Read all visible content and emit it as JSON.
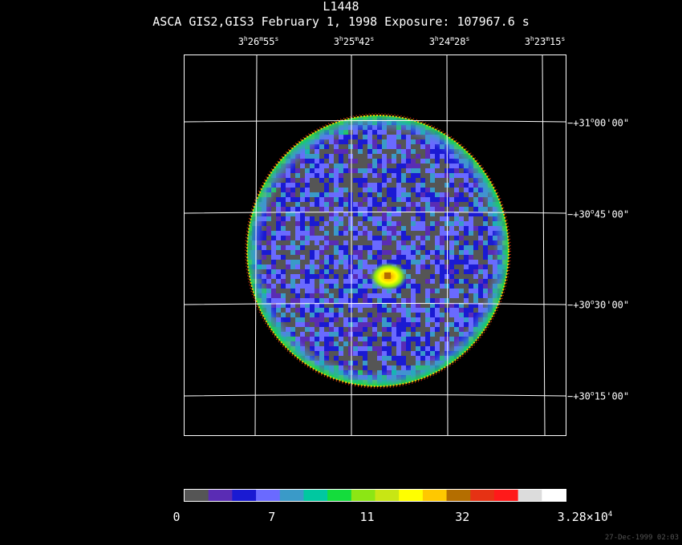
{
  "figure": {
    "title": "L1448",
    "subtitle": "ASCA GIS2,GIS3 February 1, 1998 Exposure: 107967.6 s",
    "timestamp": "27-Dec-1999 02:03"
  },
  "ra_axis": {
    "labels": [
      {
        "h": "3",
        "m": "26",
        "s": "55"
      },
      {
        "h": "3",
        "m": "25",
        "s": "42"
      },
      {
        "h": "3",
        "m": "24",
        "s": "28"
      },
      {
        "h": "3",
        "m": "23",
        "s": "15"
      }
    ]
  },
  "dec_axis": {
    "labels": [
      {
        "deg": "+31",
        "min": "00",
        "sec": "00"
      },
      {
        "deg": "+30",
        "min": "45",
        "sec": "00"
      },
      {
        "deg": "+30",
        "min": "30",
        "sec": "00"
      },
      {
        "deg": "+30",
        "min": "15",
        "sec": "00"
      }
    ]
  },
  "colorbar": {
    "colors": [
      "#555555",
      "#5a2cb4",
      "#1a1ad2",
      "#6a6aff",
      "#3a9ac8",
      "#00c8a0",
      "#14dc3c",
      "#8ce614",
      "#c8e614",
      "#ffff00",
      "#ffc800",
      "#b46e00",
      "#e63214",
      "#ff1a1a",
      "#dcdcdc",
      "#ffffff"
    ],
    "tick_labels": [
      {
        "text": "0",
        "index": 0
      },
      {
        "text": "7",
        "index": 4
      },
      {
        "text": "11",
        "index": 8
      },
      {
        "text": "32",
        "index": 12
      }
    ],
    "max_label_base": "3.28×10",
    "max_label_exp": "4"
  }
}
